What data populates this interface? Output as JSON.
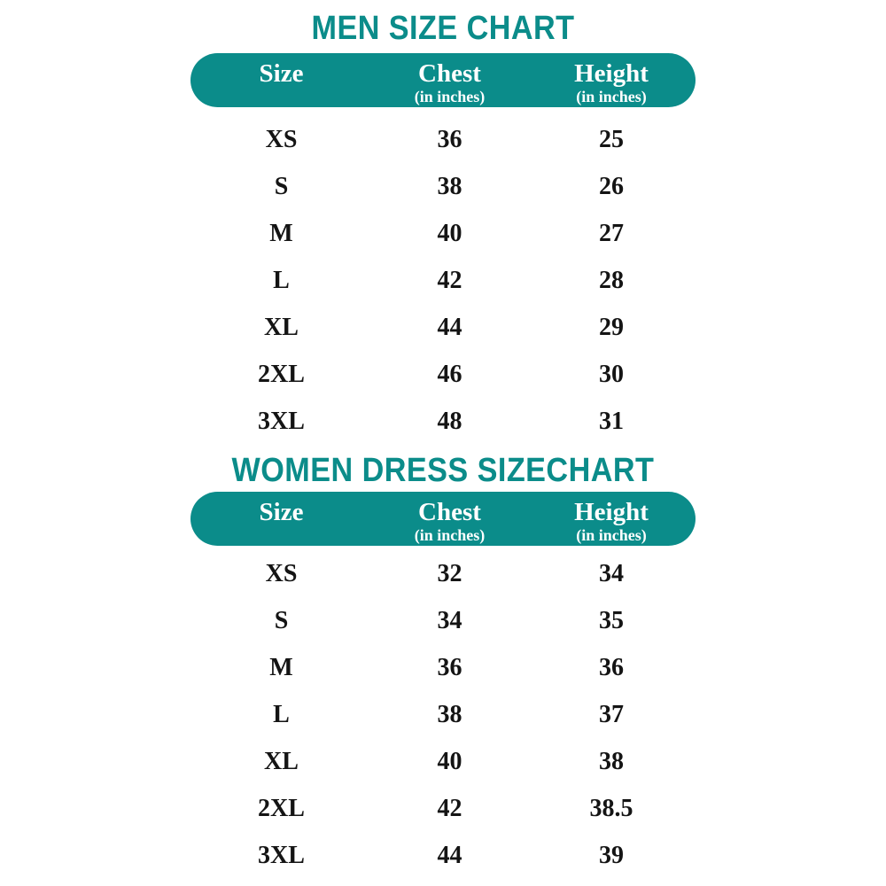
{
  "colors": {
    "accent": "#0b8c8a",
    "stripe": "#e8ece9",
    "header-text": "#ffffff",
    "body-text": "#141414"
  },
  "chart_data": [
    {
      "type": "table",
      "title": "MEN SIZE CHART",
      "columns": [
        [
          "Size",
          ""
        ],
        [
          "Chest",
          "(in inches)"
        ],
        [
          "Height",
          "(in inches)"
        ]
      ],
      "rows": [
        [
          "XS",
          "36",
          "25"
        ],
        [
          "S",
          "38",
          "26"
        ],
        [
          "M",
          "40",
          "27"
        ],
        [
          "L",
          "42",
          "28"
        ],
        [
          "XL",
          "44",
          "29"
        ],
        [
          "2XL",
          "46",
          "30"
        ],
        [
          "3XL",
          "48",
          "31"
        ]
      ]
    },
    {
      "type": "table",
      "title": "WOMEN DRESS SIZECHART",
      "columns": [
        [
          "Size",
          ""
        ],
        [
          "Chest",
          "(in inches)"
        ],
        [
          "Height",
          "(in inches)"
        ]
      ],
      "rows": [
        [
          "XS",
          "32",
          "34"
        ],
        [
          "S",
          "34",
          "35"
        ],
        [
          "M",
          "36",
          "36"
        ],
        [
          "L",
          "38",
          "37"
        ],
        [
          "XL",
          "40",
          "38"
        ],
        [
          "2XL",
          "42",
          "38.5"
        ],
        [
          "3XL",
          "44",
          "39"
        ]
      ]
    }
  ]
}
